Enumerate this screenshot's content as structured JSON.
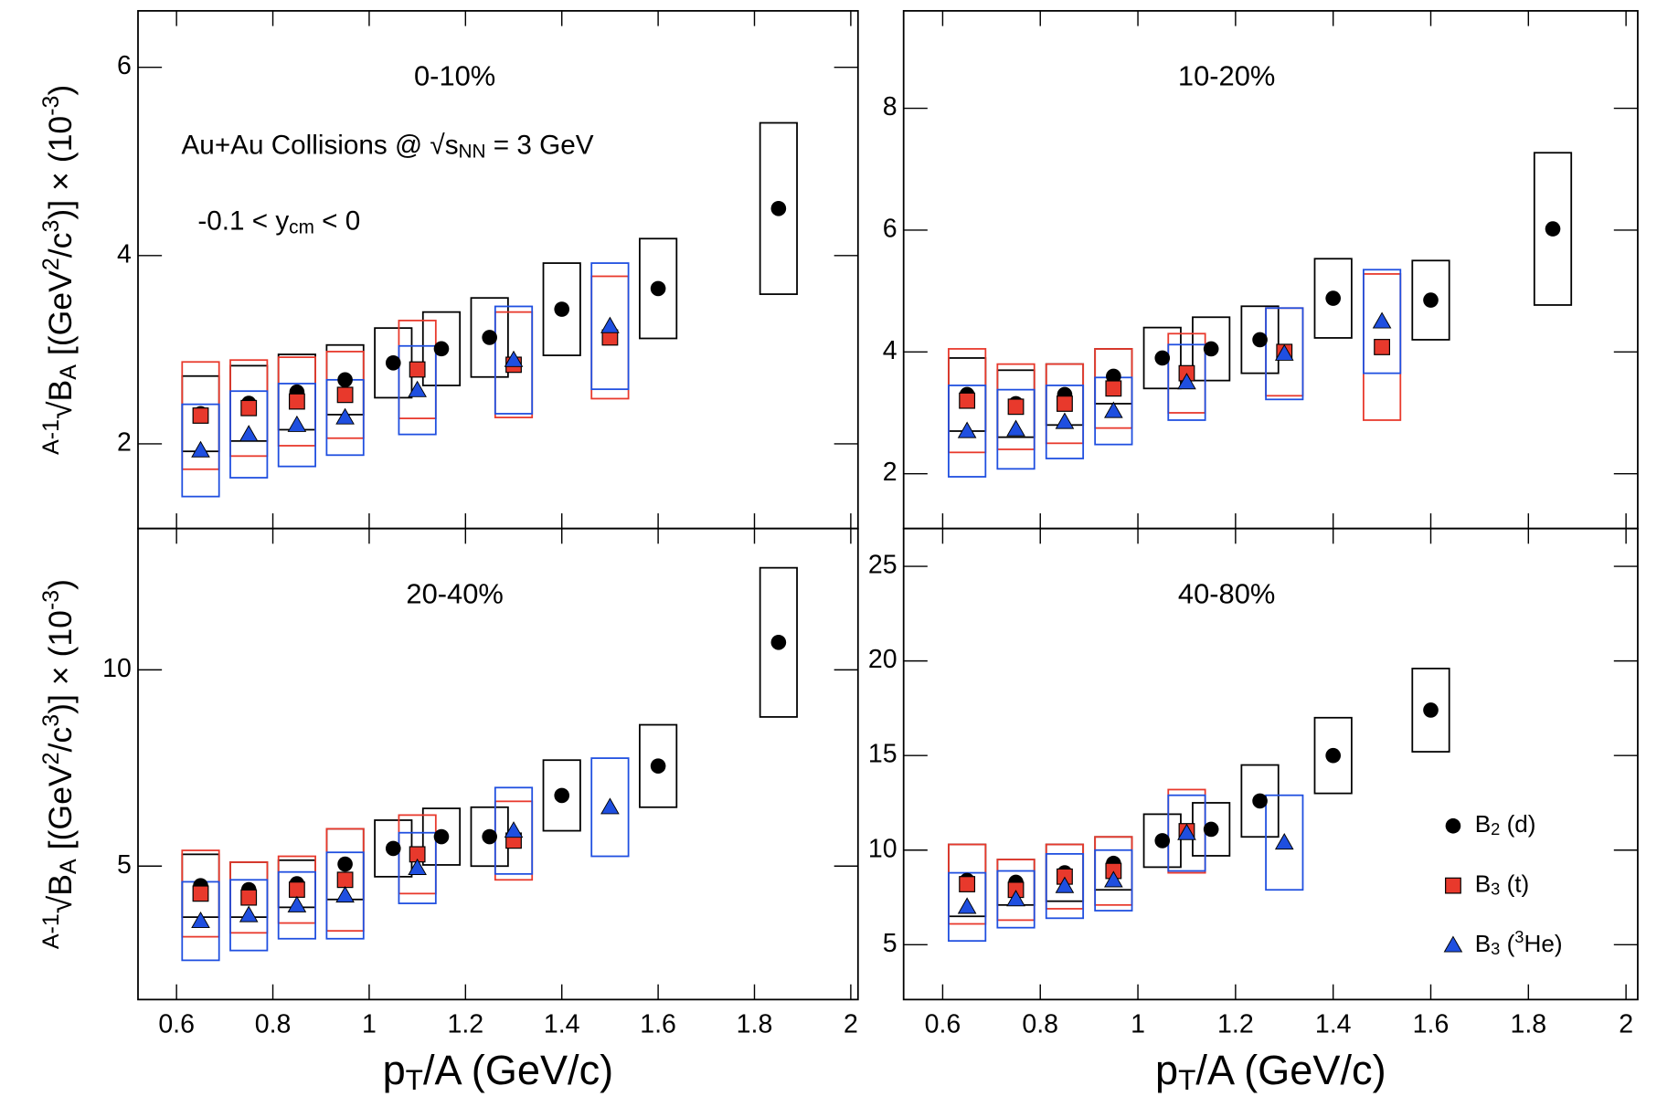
{
  "chart_data": [
    {
      "type": "scatter",
      "title": "0-10%",
      "annotations": [
        [
          {
            "t": "Au+Au Collisions @ √s"
          },
          {
            "t": "NN",
            "sub": true
          },
          {
            "t": " = 3 GeV"
          }
        ],
        [
          {
            "t": "-0.1 < y"
          },
          {
            "t": "cm",
            "sub": true
          },
          {
            "t": " < 0"
          }
        ]
      ],
      "y_label": [
        {
          "t": "A-1",
          "sup": true
        },
        {
          "t": "√B"
        },
        {
          "t": "A",
          "sub": true
        },
        {
          "t": " [(GeV"
        },
        {
          "t": "2",
          "sup": true
        },
        {
          "t": "/c"
        },
        {
          "t": "3",
          "sup": true
        },
        {
          "t": ")] × (10"
        },
        {
          "t": "-3",
          "sup": true
        },
        {
          "t": ")"
        }
      ],
      "xlim": [
        0.52,
        2.015
      ],
      "xticks": [
        0.6,
        0.8,
        1,
        1.2,
        1.4,
        1.6,
        1.8,
        2
      ],
      "ylim": [
        1.1,
        6.6
      ],
      "yticks": [
        2,
        4,
        6
      ],
      "series": [
        {
          "name": "d",
          "color": "#000000",
          "marker": "circle",
          "x": [
            0.65,
            0.75,
            0.85,
            0.95,
            1.05,
            1.15,
            1.25,
            1.4,
            1.6,
            1.85
          ],
          "values": [
            2.32,
            2.43,
            2.55,
            2.68,
            2.86,
            3.01,
            3.13,
            3.43,
            3.65,
            4.5
          ],
          "errors": [
            0.4,
            0.4,
            0.4,
            0.37,
            0.37,
            0.39,
            0.42,
            0.49,
            0.53,
            0.91
          ]
        },
        {
          "name": "t",
          "color": "#e8392c",
          "marker": "square",
          "x": [
            0.65,
            0.75,
            0.85,
            0.95,
            1.1,
            1.3,
            1.5
          ],
          "values": [
            2.3,
            2.38,
            2.45,
            2.52,
            2.79,
            2.84,
            3.13
          ],
          "errors": [
            0.57,
            0.51,
            0.47,
            0.46,
            0.52,
            0.56,
            0.65
          ]
        },
        {
          "name": "3He",
          "color": "#1f4fe0",
          "marker": "triangle",
          "x": [
            0.65,
            0.75,
            0.85,
            0.95,
            1.1,
            1.3,
            1.5
          ],
          "values": [
            1.93,
            2.1,
            2.2,
            2.28,
            2.57,
            2.89,
            3.25
          ],
          "errors": [
            0.49,
            0.46,
            0.44,
            0.4,
            0.47,
            0.57,
            0.67
          ]
        }
      ]
    },
    {
      "type": "scatter",
      "title": "10-20%",
      "xlim": [
        0.52,
        2.024
      ],
      "xticks": [
        0.6,
        0.8,
        1,
        1.2,
        1.4,
        1.6,
        1.8,
        2
      ],
      "ylim": [
        1.1,
        9.6
      ],
      "yticks": [
        2,
        4,
        6,
        8
      ],
      "series": [
        {
          "name": "d",
          "color": "#000000",
          "marker": "circle",
          "x": [
            0.65,
            0.75,
            0.85,
            0.95,
            1.05,
            1.15,
            1.25,
            1.4,
            1.6,
            1.85
          ],
          "values": [
            3.3,
            3.15,
            3.3,
            3.6,
            3.9,
            4.05,
            4.2,
            4.88,
            4.85,
            6.02
          ],
          "errors": [
            0.6,
            0.55,
            0.5,
            0.45,
            0.5,
            0.52,
            0.55,
            0.65,
            0.65,
            1.25
          ]
        },
        {
          "name": "t",
          "color": "#e8392c",
          "marker": "square",
          "x": [
            0.65,
            0.75,
            0.85,
            0.95,
            1.1,
            1.3,
            1.5
          ],
          "values": [
            3.2,
            3.1,
            3.15,
            3.4,
            3.65,
            4.0,
            4.08
          ],
          "errors": [
            0.85,
            0.7,
            0.65,
            0.65,
            0.65,
            0.72,
            1.2
          ]
        },
        {
          "name": "3He",
          "color": "#1f4fe0",
          "marker": "triangle",
          "x": [
            0.65,
            0.75,
            0.85,
            0.95,
            1.1,
            1.3,
            1.5
          ],
          "values": [
            2.7,
            2.73,
            2.85,
            3.03,
            3.5,
            3.97,
            4.5
          ],
          "errors": [
            0.75,
            0.65,
            0.6,
            0.55,
            0.62,
            0.75,
            0.85
          ]
        }
      ]
    },
    {
      "type": "scatter",
      "title": "20-40%",
      "y_label": [
        {
          "t": "A-1",
          "sup": true
        },
        {
          "t": "√B"
        },
        {
          "t": "A",
          "sub": true
        },
        {
          "t": " [(GeV"
        },
        {
          "t": "2",
          "sup": true
        },
        {
          "t": "/c"
        },
        {
          "t": "3",
          "sup": true
        },
        {
          "t": ")] × (10"
        },
        {
          "t": "-3",
          "sup": true
        },
        {
          "t": ")"
        }
      ],
      "x_label": [
        {
          "t": "p"
        },
        {
          "t": "T",
          "sub": true
        },
        {
          "t": "/A (GeV/c)"
        }
      ],
      "xlim": [
        0.52,
        2.015
      ],
      "xticks": [
        0.6,
        0.8,
        1,
        1.2,
        1.4,
        1.6,
        1.8,
        2
      ],
      "ylim": [
        1.6,
        13.6
      ],
      "yticks": [
        5,
        10
      ],
      "series": [
        {
          "name": "d",
          "color": "#000000",
          "marker": "circle",
          "x": [
            0.65,
            0.75,
            0.85,
            0.95,
            1.05,
            1.15,
            1.25,
            1.4,
            1.6,
            1.85
          ],
          "values": [
            4.5,
            4.4,
            4.55,
            5.05,
            5.45,
            5.75,
            5.75,
            6.8,
            7.55,
            10.7
          ],
          "errors": [
            0.8,
            0.7,
            0.6,
            0.9,
            0.72,
            0.72,
            0.75,
            0.9,
            1.05,
            1.9
          ]
        },
        {
          "name": "t",
          "color": "#e8392c",
          "marker": "square",
          "x": [
            0.65,
            0.75,
            0.85,
            0.95,
            1.1,
            1.3
          ],
          "values": [
            4.3,
            4.2,
            4.4,
            4.65,
            5.3,
            5.65
          ],
          "errors": [
            1.1,
            0.9,
            0.85,
            1.3,
            1.0,
            1.0
          ]
        },
        {
          "name": "3He",
          "color": "#1f4fe0",
          "marker": "triangle",
          "x": [
            0.65,
            0.75,
            0.85,
            0.95,
            1.1,
            1.3,
            1.5
          ],
          "values": [
            3.6,
            3.75,
            4.0,
            4.25,
            4.95,
            5.9,
            6.5
          ],
          "errors": [
            1.0,
            0.9,
            0.85,
            1.1,
            0.9,
            1.1,
            1.25
          ]
        }
      ]
    },
    {
      "type": "scatter",
      "title": "40-80%",
      "x_label": [
        {
          "t": "p"
        },
        {
          "t": "T",
          "sub": true
        },
        {
          "t": "/A (GeV/c)"
        }
      ],
      "legend": "lower right",
      "legend_labels": [
        [
          {
            "t": "B"
          },
          {
            "t": "2",
            "sub": true
          },
          {
            "t": " (d)"
          }
        ],
        [
          {
            "t": "B"
          },
          {
            "t": "3",
            "sub": true
          },
          {
            "t": " (t)"
          }
        ],
        [
          {
            "t": "B"
          },
          {
            "t": "3",
            "sub": true
          },
          {
            "t": " ("
          },
          {
            "t": "3",
            "sup": true
          },
          {
            "t": "He)"
          }
        ]
      ],
      "xlim": [
        0.52,
        2.024
      ],
      "xticks": [
        0.6,
        0.8,
        1,
        1.2,
        1.4,
        1.6,
        1.8,
        2
      ],
      "ylim": [
        2.1,
        27
      ],
      "yticks": [
        5,
        10,
        15,
        20,
        25
      ],
      "series": [
        {
          "name": "d",
          "color": "#000000",
          "marker": "circle",
          "x": [
            0.65,
            0.75,
            0.85,
            0.95,
            1.05,
            1.15,
            1.25,
            1.4,
            1.6
          ],
          "values": [
            8.4,
            8.3,
            8.8,
            9.3,
            10.5,
            11.1,
            12.6,
            15.0,
            17.4
          ],
          "errors": [
            1.9,
            1.2,
            1.5,
            1.4,
            1.4,
            1.4,
            1.9,
            2.0,
            2.2
          ]
        },
        {
          "name": "t",
          "color": "#e8392c",
          "marker": "square",
          "x": [
            0.65,
            0.75,
            0.85,
            0.95,
            1.1
          ],
          "values": [
            8.2,
            7.9,
            8.6,
            8.9,
            11.0
          ],
          "errors": [
            2.1,
            1.6,
            1.7,
            1.8,
            2.2
          ]
        },
        {
          "name": "3He",
          "color": "#1f4fe0",
          "marker": "triangle",
          "x": [
            0.65,
            0.75,
            0.85,
            0.95,
            1.1,
            1.3
          ],
          "values": [
            7.0,
            7.4,
            8.1,
            8.4,
            10.9,
            10.4
          ],
          "errors": [
            1.8,
            1.5,
            1.7,
            1.6,
            2.0,
            2.5
          ]
        }
      ]
    }
  ]
}
